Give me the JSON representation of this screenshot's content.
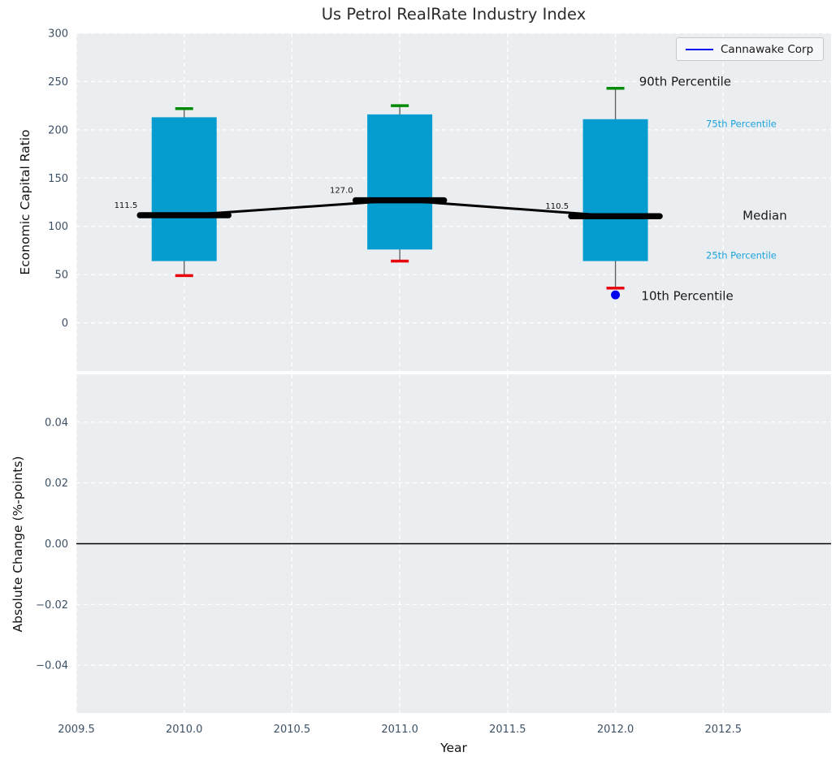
{
  "title": "Us Petrol RealRate Industry Index",
  "legend": {
    "label": "Cannawake Corp"
  },
  "colors": {
    "figure_bg": "#ffffff",
    "plot_bg": "#eaeef1",
    "grid": "#ffffff",
    "tick_label": "#3d5166",
    "box_fill": "#059ccf",
    "whisker": "#5a5a5a",
    "p90_cap": "#038b06",
    "p10_cap": "#e8000d",
    "median_line": "#000000",
    "company": "#0000ee",
    "annotation_black": "#1a1a1a",
    "annotation_cyan": "#1ba3dc",
    "zero_line": "#000000"
  },
  "xaxis": {
    "label": "Year",
    "lim": [
      2009.5,
      2013.0
    ],
    "ticks": [
      {
        "label": "2009.5",
        "value": 2009.5
      },
      {
        "label": "2010.0",
        "value": 2010.0
      },
      {
        "label": "2010.5",
        "value": 2010.5
      },
      {
        "label": "2011.0",
        "value": 2011.0
      },
      {
        "label": "2011.5",
        "value": 2011.5
      },
      {
        "label": "2012.0",
        "value": 2012.0
      },
      {
        "label": "2012.5",
        "value": 2012.5
      }
    ]
  },
  "chart_data": {
    "type": "boxplot",
    "title": "Us Petrol RealRate Industry Index",
    "xlabel": "Year",
    "panels": [
      {
        "id": "economic-capital-ratio",
        "ylabel": "Economic Capital Ratio",
        "ylim": [
          -50,
          300
        ],
        "yticks": [
          {
            "label": "0",
            "value": 0
          },
          {
            "label": "50",
            "value": 50
          },
          {
            "label": "100",
            "value": 100
          },
          {
            "label": "150",
            "value": 150
          },
          {
            "label": "200",
            "value": 200
          },
          {
            "label": "250",
            "value": 250
          },
          {
            "label": "300",
            "value": 300
          }
        ],
        "boxes": [
          {
            "year": 2010,
            "p90": 222,
            "p75": 213,
            "median": 111.5,
            "p25": 64,
            "p10": 49,
            "median_label": "111.5"
          },
          {
            "year": 2011,
            "p90": 225,
            "p75": 216,
            "median": 127.0,
            "p25": 76,
            "p10": 64,
            "median_label": "127.0"
          },
          {
            "year": 2012,
            "p90": 243,
            "p75": 211,
            "median": 110.5,
            "p25": 64,
            "p10": 36,
            "median_label": "110.5"
          }
        ],
        "company_series": {
          "name": "Cannawake Corp",
          "points": [
            {
              "year": 2012,
              "value": 29
            }
          ]
        },
        "annotations": [
          {
            "text": "90th Percentile",
            "year": 2012.11,
            "value": 250,
            "style": "large"
          },
          {
            "text": "75th Percentile",
            "year": 2012.42,
            "value": 206,
            "style": "small"
          },
          {
            "text": "Median",
            "year": 2012.59,
            "value": 111,
            "style": "large"
          },
          {
            "text": "25th Percentile",
            "year": 2012.42,
            "value": 70,
            "style": "small"
          },
          {
            "text": "10th Percentile",
            "year": 2012.12,
            "value": 28,
            "style": "large"
          }
        ]
      },
      {
        "id": "absolute-change",
        "ylabel": "Absolute Change (%-points)",
        "ylim": [
          -0.0557,
          0.0557
        ],
        "yticks": [
          {
            "label": "0.04",
            "value": 0.04
          },
          {
            "label": "0.02",
            "value": 0.02
          },
          {
            "label": "0.00",
            "value": 0.0
          },
          {
            "label": "−0.02",
            "value": -0.02
          },
          {
            "label": "−0.04",
            "value": -0.04
          }
        ],
        "zero_line": 0.0,
        "series": []
      }
    ]
  }
}
